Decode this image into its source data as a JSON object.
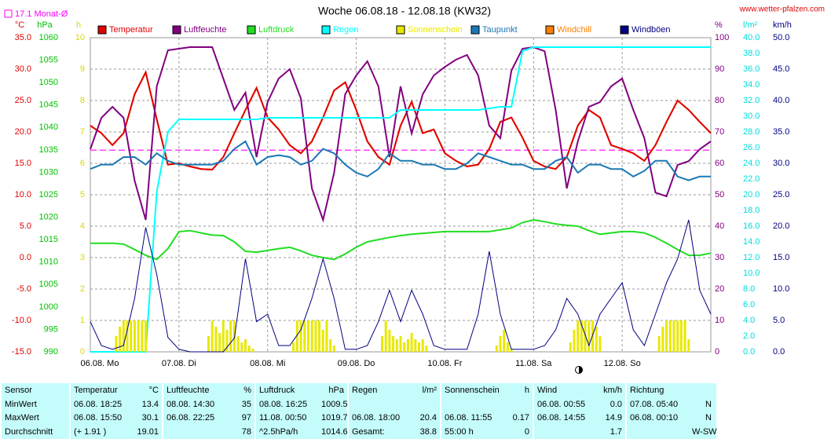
{
  "chart_data": {
    "type": "line",
    "title": "Woche 06.08.18 - 12.08.18 (KW32)",
    "source": "www.wetter-pfalzen.com",
    "monthly_mean": {
      "label": "17.1 Monat-Ø",
      "value": 17.1,
      "color": "#ff00ff"
    },
    "xlim": [
      0,
      168
    ],
    "xticks": [
      {
        "value": 0,
        "label": "06.08.  Mo"
      },
      {
        "value": 24,
        "label": "07.08.  Di"
      },
      {
        "value": 48,
        "label": "08.08.  Mi"
      },
      {
        "value": 72,
        "label": "09.08.  Do"
      },
      {
        "value": 96,
        "label": "10.08.  Fr"
      },
      {
        "value": 120,
        "label": "11.08.  Sa"
      },
      {
        "value": 144,
        "label": "12.08.  So"
      }
    ],
    "axes": [
      {
        "unit": "°C",
        "color": "#e00000",
        "lim": [
          -15,
          35
        ],
        "ticks": [
          {
            "value": -15,
            "label": "-15.0"
          },
          {
            "value": -10,
            "label": "-10.0"
          },
          {
            "value": -5,
            "label": "-5.0"
          },
          {
            "value": 0,
            "label": "0.0"
          },
          {
            "value": 5,
            "label": "5.0"
          },
          {
            "value": 10,
            "label": "10.0"
          },
          {
            "value": 15,
            "label": "15.0"
          },
          {
            "value": 20,
            "label": "20.0"
          },
          {
            "value": 25,
            "label": "25.0"
          },
          {
            "value": 30,
            "label": "30.0"
          },
          {
            "value": 35,
            "label": "35.0"
          }
        ]
      },
      {
        "unit": "hPa",
        "color": "#00c000",
        "lim": [
          990,
          1060
        ],
        "ticks": [
          990,
          995,
          1000,
          1005,
          1010,
          1015,
          1020,
          1025,
          1030,
          1035,
          1040,
          1045,
          1050,
          1055,
          1060
        ]
      },
      {
        "unit": "h",
        "color": "#d8d800",
        "lim": [
          0,
          10
        ],
        "ticks": [
          0,
          1,
          2,
          3,
          4,
          5,
          6,
          7,
          8,
          9,
          10
        ]
      },
      {
        "unit": "%",
        "color": "#800080",
        "lim": [
          0,
          100
        ],
        "ticks": [
          0,
          10,
          20,
          30,
          40,
          50,
          60,
          70,
          80,
          90,
          100
        ]
      },
      {
        "unit": "l/m²",
        "color": "#00dcdc",
        "lim": [
          0,
          40
        ],
        "ticks": [
          {
            "value": 0,
            "label": "0.0"
          },
          {
            "value": 2,
            "label": "2.0"
          },
          {
            "value": 4,
            "label": "4.0"
          },
          {
            "value": 6,
            "label": "6.0"
          },
          {
            "value": 8,
            "label": "8.0"
          },
          {
            "value": 10,
            "label": "10.0"
          },
          {
            "value": 12,
            "label": "12.0"
          },
          {
            "value": 14,
            "label": "14.0"
          },
          {
            "value": 16,
            "label": "16.0"
          },
          {
            "value": 18,
            "label": "18.0"
          },
          {
            "value": 20,
            "label": "20.0"
          },
          {
            "value": 22,
            "label": "22.0"
          },
          {
            "value": 24,
            "label": "24.0"
          },
          {
            "value": 26,
            "label": "26.0"
          },
          {
            "value": 28,
            "label": "28.0"
          },
          {
            "value": 30,
            "label": "30.0"
          },
          {
            "value": 32,
            "label": "32.0"
          },
          {
            "value": 34,
            "label": "34.0"
          },
          {
            "value": 36,
            "label": "36.0"
          },
          {
            "value": 38,
            "label": "38.0"
          },
          {
            "value": 40,
            "label": "40.0"
          }
        ]
      },
      {
        "unit": "km/h",
        "color": "#000080",
        "lim": [
          0,
          50
        ],
        "ticks": [
          {
            "value": 0,
            "label": "0.0"
          },
          {
            "value": 5,
            "label": "5.0"
          },
          {
            "value": 10,
            "label": "10.0"
          },
          {
            "value": 15,
            "label": "15.0"
          },
          {
            "value": 20,
            "label": "20.0"
          },
          {
            "value": 25,
            "label": "25.0"
          },
          {
            "value": 30,
            "label": "30.0"
          },
          {
            "value": 35,
            "label": "35.0"
          },
          {
            "value": 40,
            "label": "40.0"
          },
          {
            "value": 45,
            "label": "45.0"
          },
          {
            "value": 50,
            "label": "50.0"
          }
        ]
      }
    ],
    "grid": true,
    "x": [
      0,
      3,
      6,
      9,
      12,
      15,
      18,
      21,
      24,
      27,
      30,
      33,
      36,
      39,
      42,
      45,
      48,
      51,
      54,
      57,
      60,
      63,
      66,
      69,
      72,
      75,
      78,
      81,
      84,
      87,
      90,
      93,
      96,
      99,
      102,
      105,
      108,
      111,
      114,
      117,
      120,
      123,
      126,
      129,
      132,
      135,
      138,
      141,
      144,
      147,
      150,
      153,
      156,
      159,
      162,
      165,
      168
    ],
    "series": [
      {
        "name": "Temperatur",
        "color": "#e00000",
        "axis": 0,
        "values": [
          21,
          19.8,
          17.9,
          19.8,
          26,
          29.5,
          22,
          14.8,
          15,
          14.5,
          14.1,
          14,
          16,
          19.8,
          23.5,
          27,
          22.3,
          20.4,
          17.9,
          16.6,
          18.5,
          22.3,
          26.6,
          27.9,
          23.5,
          18.5,
          16,
          14.8,
          21,
          24.8,
          19.8,
          20.4,
          16.6,
          15.4,
          14.5,
          14.8,
          17.3,
          21.6,
          22.3,
          19.1,
          15.4,
          14.5,
          14.1,
          16,
          21,
          23.5,
          22.3,
          17.9,
          17.3,
          16.6,
          15.4,
          17.9,
          21.6,
          25,
          23.5,
          21.6,
          19.8
        ]
      },
      {
        "name": "Luftfeuchte",
        "color": "#800080",
        "axis": 3,
        "values": [
          64.5,
          74.5,
          78,
          74.5,
          54.5,
          42,
          84.5,
          96,
          96.5,
          97,
          97,
          97,
          87,
          77,
          82.5,
          62,
          79.5,
          87,
          90,
          80.7,
          52,
          42,
          57,
          82,
          88,
          92.5,
          84.5,
          62,
          84.5,
          69.5,
          82,
          88,
          90.7,
          93,
          94.5,
          88,
          72,
          68,
          89.5,
          96.5,
          97,
          95.7,
          77,
          52,
          67,
          78,
          79.5,
          84.5,
          87,
          77,
          68,
          50.7,
          49.5,
          59.5,
          60.7,
          64.5,
          67
        ]
      },
      {
        "name": "Luftdruck",
        "color": "#22dd22",
        "axis": 1,
        "values": [
          1014.2,
          1014.2,
          1014.2,
          1014,
          1012.8,
          1011.5,
          1010.6,
          1013,
          1016.8,
          1017,
          1016.5,
          1016,
          1015.9,
          1014.5,
          1012.4,
          1012.2,
          1012.6,
          1013,
          1013.3,
          1012.5,
          1011.5,
          1011,
          1010.6,
          1011.8,
          1013.3,
          1014.5,
          1015,
          1015.5,
          1015.9,
          1016.2,
          1016.4,
          1016.6,
          1016.8,
          1016.8,
          1016.8,
          1016.8,
          1016.8,
          1017.2,
          1017.6,
          1018.8,
          1019.4,
          1019,
          1018.5,
          1018.2,
          1018,
          1017,
          1016.2,
          1016.5,
          1016.8,
          1016.8,
          1016.5,
          1015.5,
          1014.2,
          1012.8,
          1011.5,
          1011.5,
          1012
        ]
      },
      {
        "name": "Regen",
        "color": "#00ffff",
        "axis": 4,
        "values": [
          0,
          0,
          0,
          0,
          0,
          0,
          20.4,
          28,
          29.6,
          29.6,
          29.6,
          29.6,
          29.6,
          29.6,
          29.6,
          29.6,
          29.8,
          29.8,
          29.8,
          29.8,
          29.8,
          29.8,
          29.8,
          29.8,
          29.8,
          29.8,
          29.8,
          29.8,
          30.8,
          30.8,
          30.8,
          30.8,
          30.8,
          30.8,
          30.8,
          30.8,
          31,
          31.2,
          31.2,
          38.3,
          38.8,
          38.8,
          38.8,
          38.8,
          38.8,
          38.8,
          38.8,
          38.8,
          38.8,
          38.8,
          38.8,
          38.8,
          38.8,
          38.8,
          38.8,
          38.8,
          38.8
        ]
      },
      {
        "name": "Sonnenschein",
        "color": "#e8e800",
        "axis": 2,
        "style": "bar",
        "x": [
          7,
          8,
          9,
          10,
          11,
          12,
          13,
          14,
          15,
          32,
          33,
          34,
          35,
          36,
          37,
          38,
          39,
          40,
          41,
          42,
          43,
          44,
          55,
          56,
          57,
          58,
          59,
          60,
          61,
          62,
          63,
          64,
          65,
          66,
          79,
          80,
          81,
          82,
          83,
          84,
          85,
          86,
          87,
          88,
          89,
          90,
          91,
          110,
          111,
          112,
          113,
          114,
          130,
          131,
          132,
          133,
          134,
          135,
          136,
          137,
          138,
          154,
          155,
          156,
          157,
          158,
          159,
          160,
          161,
          162
        ],
        "values": [
          0.5,
          0.8,
          1,
          1,
          1,
          1,
          1,
          1,
          1,
          0.5,
          1,
          0.8,
          0.6,
          1,
          0.7,
          1,
          1,
          0.5,
          0.3,
          0.4,
          0.2,
          0.1,
          0.3,
          1,
          1,
          1,
          1,
          1,
          1,
          1,
          0.7,
          1,
          0.4,
          0.2,
          0.5,
          1,
          0.7,
          0.5,
          0.4,
          0.5,
          0.3,
          0.4,
          0.6,
          0.4,
          0.3,
          0.4,
          0.2,
          0.2,
          0.5,
          0.7,
          0.3,
          0.1,
          0.3,
          0.7,
          1,
          1,
          1,
          1,
          1,
          0.8,
          0.5,
          0.5,
          0.8,
          1,
          1,
          1,
          1,
          1,
          1,
          0.4
        ]
      },
      {
        "name": "Taupunkt",
        "color": "#1a78b4",
        "axis": 0,
        "values": [
          14.1,
          14.8,
          14.8,
          16,
          16,
          14.8,
          16.6,
          15.4,
          14.8,
          14.8,
          14.8,
          14.8,
          15.4,
          17.3,
          18.5,
          14.8,
          16,
          16.3,
          16,
          14.8,
          15.4,
          17.3,
          16.6,
          14.8,
          13.5,
          12.9,
          14.1,
          16.6,
          15.4,
          15.4,
          14.8,
          14.8,
          14.1,
          14.1,
          15,
          16.6,
          16,
          15.4,
          14.8,
          14.8,
          14.1,
          14.1,
          15.4,
          16,
          13.5,
          14.8,
          14.8,
          14.1,
          14.1,
          12.9,
          13.8,
          15.4,
          15.4,
          12.9,
          12.3,
          12.9,
          12.9
        ]
      },
      {
        "name": "Windchill",
        "color": "#ff8000",
        "axis": 0,
        "under": true,
        "values": [
          21,
          19.8,
          17.9,
          19.8,
          26,
          29.5,
          22,
          14.8,
          15,
          14.5,
          14.1,
          14,
          16,
          19.8,
          23.5,
          27,
          22.3,
          20.4,
          17.9,
          16.6,
          18.5,
          22.3,
          26.6,
          27.9,
          23.5,
          18.5,
          16,
          14.8,
          21,
          24.8,
          19.8,
          20.4,
          16.6,
          15.4,
          14.5,
          14.8,
          17.3,
          21.6,
          22.3,
          19.1,
          15.4,
          14.5,
          14.1,
          16,
          21,
          23.5,
          22.3,
          17.9,
          17.3,
          16.6,
          15.4,
          17.9,
          21.6,
          25,
          23.5,
          21.6,
          19.8
        ]
      },
      {
        "name": "Windböen",
        "color": "#000080",
        "axis": 5,
        "values": [
          4.8,
          1,
          0.4,
          1,
          8.5,
          19.8,
          12.3,
          2.3,
          0.4,
          0,
          0,
          0,
          0,
          2.2,
          14.8,
          4.8,
          6,
          1,
          1,
          3.5,
          8.5,
          14.8,
          8.5,
          0.4,
          0.4,
          1,
          4.8,
          9.8,
          4.8,
          9.8,
          6,
          1,
          0.4,
          0.4,
          0.4,
          6,
          16,
          6,
          0.4,
          0.4,
          0.4,
          1,
          3.5,
          8.5,
          6,
          1,
          6,
          8.5,
          11,
          3.5,
          1,
          6,
          11,
          14.8,
          21,
          9.8,
          6
        ]
      }
    ]
  },
  "table": {
    "header": [
      "Sensor",
      "Temperatur",
      "°C",
      "Luftfeuchte",
      "%",
      "Luftdruck",
      "hPa",
      "Regen",
      "l/m²",
      "Sonnenschein",
      "h",
      "Wind",
      "km/h",
      "Richtung",
      null
    ],
    "rows": [
      [
        "MinWert",
        "06.08.  18:25",
        "13.4",
        "08.08.  14:30",
        "35",
        "08.08.  16:25",
        "1009.5",
        null,
        null,
        null,
        null,
        "06.08.  00:55",
        "0.0",
        "07.08.  05:40",
        "N"
      ],
      [
        "MaxWert",
        "06.08.  15:50",
        "30.1",
        "06.08.  22:25",
        "97",
        "11.08.  00:50",
        "1019.7",
        "06.08.  18:00",
        "20.4",
        "06.08.  11:55",
        "0.17",
        "06.08.  14:55",
        "14.9",
        "06.08.  00:10",
        "N"
      ],
      [
        "Durchschnitt",
        "(+ 1.91 )",
        "19.01",
        null,
        "78",
        "^2.5hPa/h",
        "1014.6",
        "Gesamt:",
        "38.8",
        "55:00 h",
        "0",
        null,
        "1.7",
        null,
        "W-SW"
      ]
    ]
  }
}
